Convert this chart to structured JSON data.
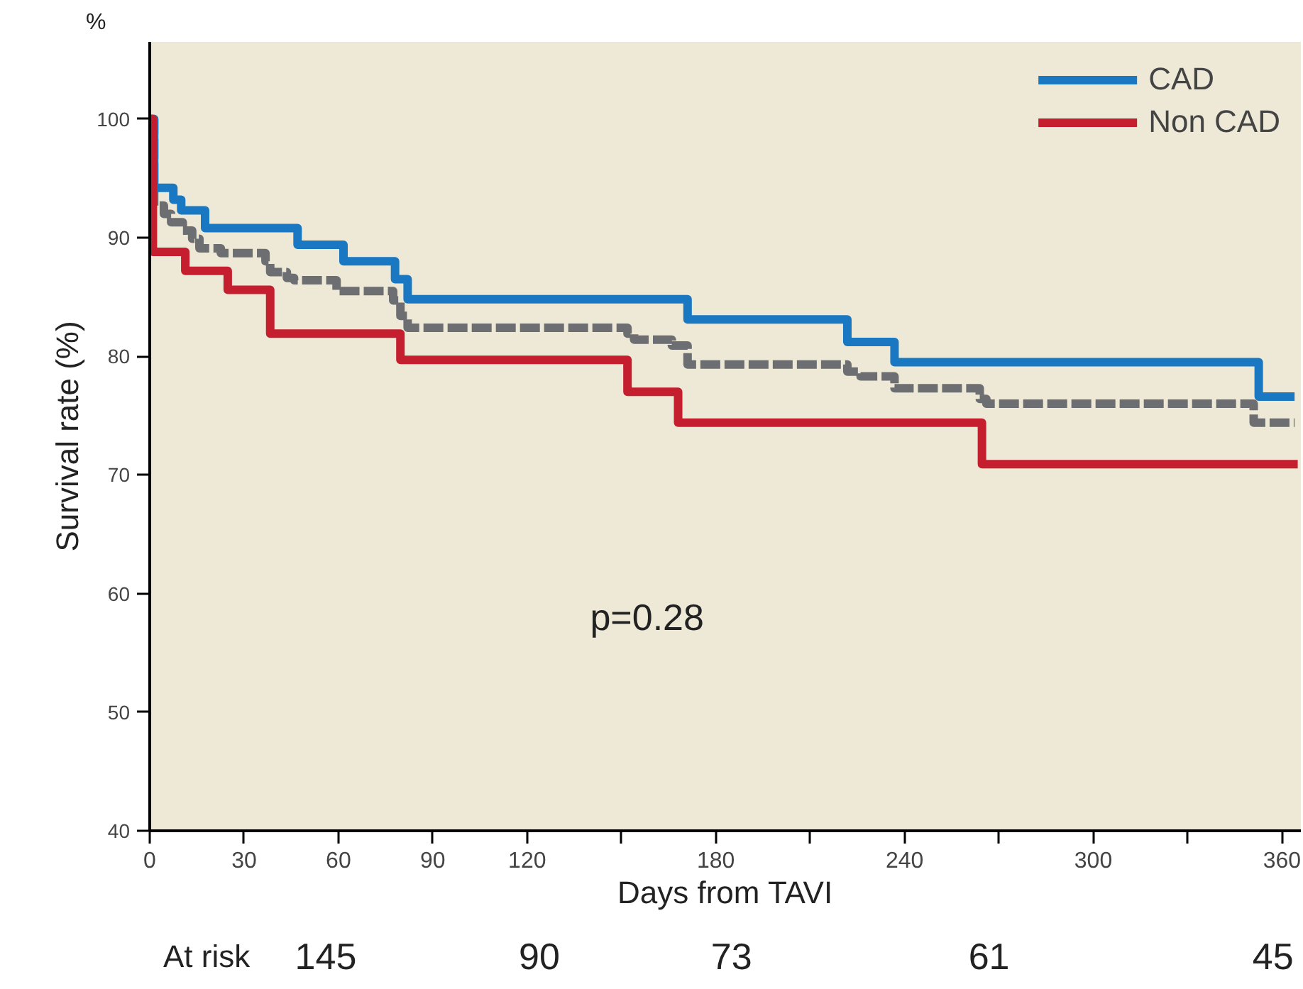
{
  "chart_data": {
    "type": "step",
    "xlabel": "Days from TAVI",
    "ylabel": "Survival rate (%)",
    "xlim": [
      0,
      366
    ],
    "ylim": [
      40,
      106.5
    ],
    "xticks": [
      0,
      30,
      60,
      90,
      120,
      {
        "value": 150,
        "label": null
      },
      180,
      {
        "value": 210,
        "label": null
      },
      240,
      {
        "value": 270,
        "label": null
      },
      300,
      {
        "value": 330,
        "label": null
      },
      360
    ],
    "yticks": [
      40,
      50,
      60,
      70,
      80,
      90,
      100
    ],
    "grid": false,
    "legend": "top right",
    "line_style": "solid",
    "marker": "none",
    "series": [
      {
        "name": "CAD",
        "color": "#1a78c2",
        "x": [
          0,
          1.4,
          7.5,
          10,
          17.6,
          47,
          61.6,
          78,
          82,
          171,
          221.8,
          236.8,
          352.6,
          364
        ],
        "values": [
          100,
          94.2,
          93.2,
          92.3,
          90.8,
          89.4,
          88.0,
          86.5,
          84.8,
          83.1,
          81.2,
          79.5,
          76.6,
          76.6
        ]
      },
      {
        "name": "Non CAD",
        "color": "#c41e2f",
        "x": [
          0,
          1,
          11.3,
          24.8,
          38.3,
          79.7,
          151.9,
          168,
          264.6,
          365
        ],
        "values": [
          100,
          88.8,
          87.2,
          85.6,
          81.9,
          79.7,
          77.0,
          74.4,
          70.9,
          70.9
        ]
      },
      {
        "color": "#6d6e71",
        "line_style": "dashed",
        "x": [
          0,
          1.4,
          4.5,
          6.8,
          10.5,
          13.5,
          15.8,
          22.6,
          36.8,
          38.3,
          43.6,
          45.9,
          59.4,
          77.4,
          79.7,
          82,
          151.9,
          154,
          166,
          171,
          221.8,
          226,
          236.8,
          263.9,
          266,
          351,
          364
        ],
        "values": [
          100,
          92.7,
          92.0,
          91.3,
          90.6,
          89.9,
          89.1,
          88.7,
          88.0,
          87.1,
          86.6,
          86.4,
          85.5,
          84.7,
          83.4,
          82.4,
          81.9,
          81.4,
          80.9,
          79.3,
          78.7,
          78.3,
          77.3,
          76.4,
          76.0,
          74.4,
          74.4
        ]
      }
    ],
    "annotations": [
      "%",
      "p=0.28",
      "At risk",
      "145",
      "90",
      "73",
      "61",
      "45"
    ]
  }
}
